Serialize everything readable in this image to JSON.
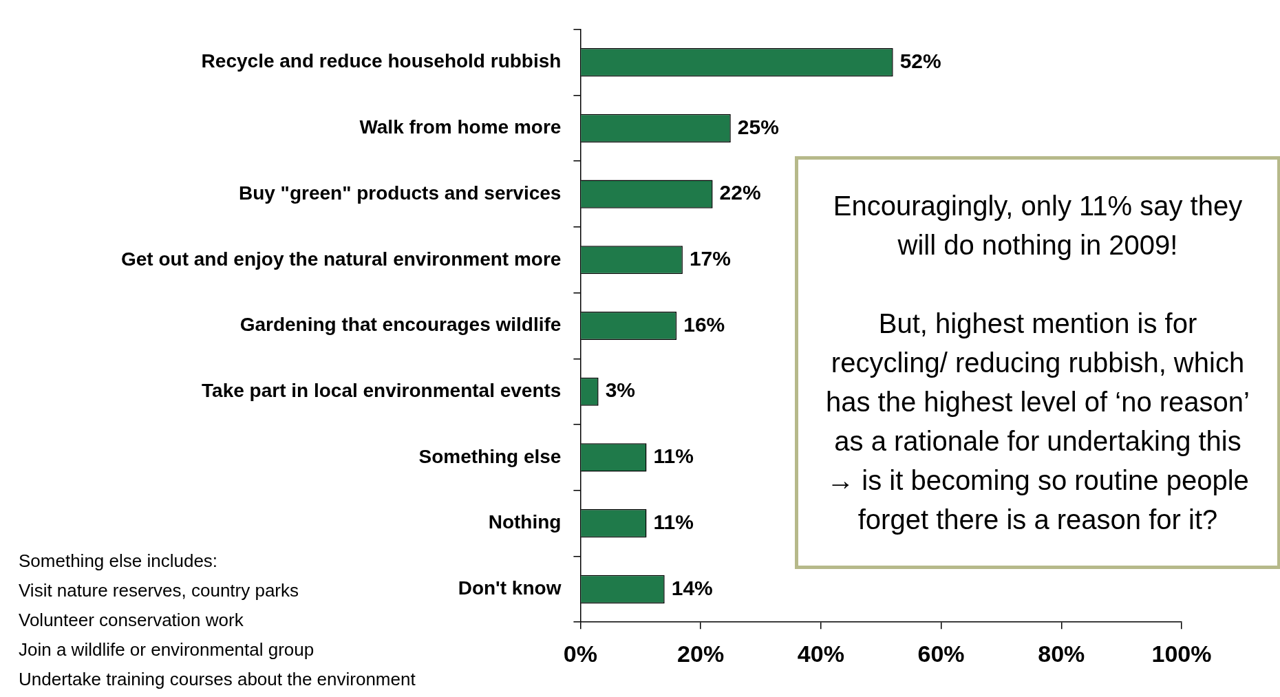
{
  "chart_data": {
    "type": "bar",
    "orientation": "horizontal",
    "categories": [
      "Recycle and reduce household rubbish",
      "Walk from home more",
      "Buy \"green\" products and services",
      "Get out and enjoy the natural environment more",
      "Gardening that encourages wildlife",
      "Take part in local environmental events",
      "Something else",
      "Nothing",
      "Don't know"
    ],
    "values": [
      52,
      25,
      22,
      17,
      16,
      3,
      11,
      11,
      14
    ],
    "value_labels": [
      "52%",
      "25%",
      "22%",
      "17%",
      "16%",
      "3%",
      "11%",
      "11%",
      "14%"
    ],
    "color": "#1f7a4a",
    "xlim": [
      0,
      100
    ],
    "xticks": [
      {
        "value": 0,
        "label": "0%"
      },
      {
        "value": 20,
        "label": "20%"
      },
      {
        "value": 40,
        "label": "40%"
      },
      {
        "value": 60,
        "label": "60%"
      },
      {
        "value": 80,
        "label": "80%"
      },
      {
        "value": 100,
        "label": "100%"
      }
    ],
    "grid": false,
    "annotations": [
      "Encouragingly, only 11% say they will do nothing in 2009!\n\nBut, highest mention is for recycling/ reducing rubbish, which has the highest level of ‘no reason’ as a rationale for undertaking this → is it becoming so routine people forget there is a reason for it?",
      "Something else includes:\nVisit nature reserves, country parks\nVolunteer conservation work\nJoin a wildlife or environmental group\nUndertake training courses about the environment"
    ]
  }
}
